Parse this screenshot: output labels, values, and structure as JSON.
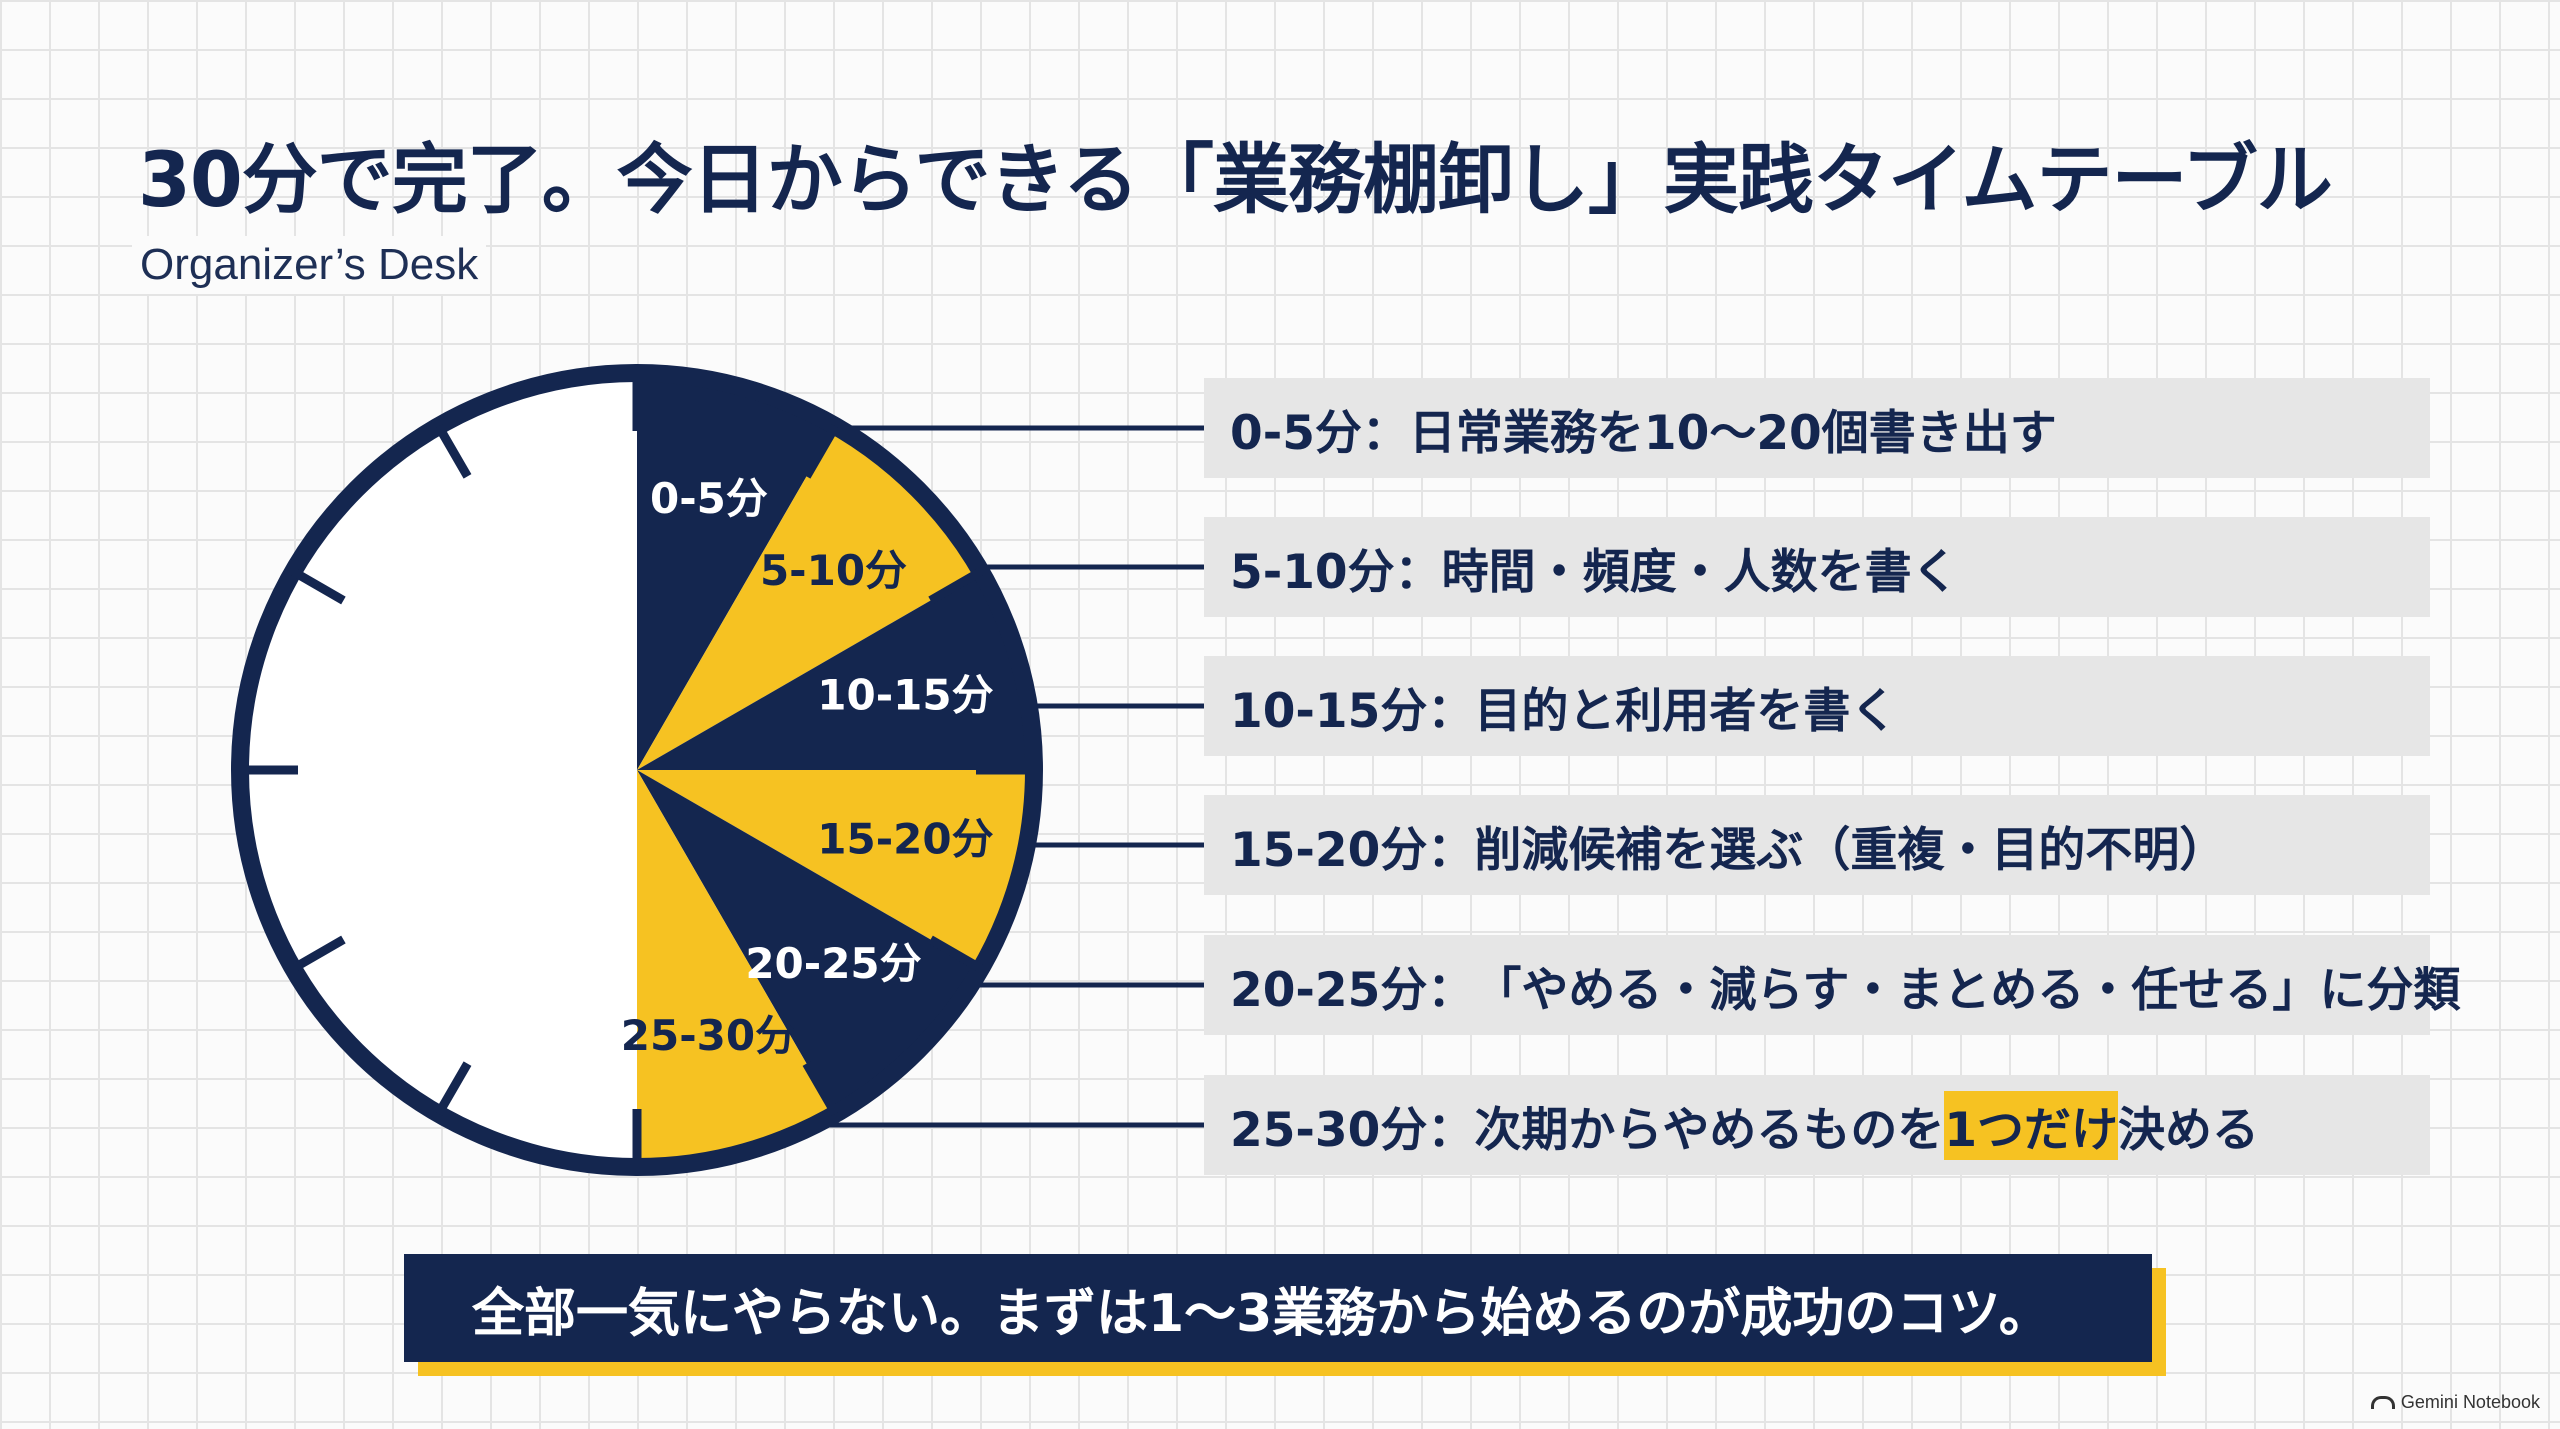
{
  "title": "30分で完了。今日からできる「業務棚卸し」実践タイムテーブル",
  "subtitle": "Organizer’s Desk",
  "clock": {
    "total_minutes": 60,
    "colors": {
      "navy": "#14264f",
      "yellow": "#f6c222",
      "face": "#ffffff"
    },
    "segments": [
      {
        "label": "0-5分",
        "start": 0,
        "end": 5,
        "color": "navy",
        "text_color": "#ffffff"
      },
      {
        "label": "5-10分",
        "start": 5,
        "end": 10,
        "color": "yellow",
        "text_color": "#14264f"
      },
      {
        "label": "10-15分",
        "start": 10,
        "end": 15,
        "color": "navy",
        "text_color": "#ffffff"
      },
      {
        "label": "15-20分",
        "start": 15,
        "end": 20,
        "color": "yellow",
        "text_color": "#14264f"
      },
      {
        "label": "20-25分",
        "start": 20,
        "end": 25,
        "color": "navy",
        "text_color": "#ffffff"
      },
      {
        "label": "25-30分",
        "start": 25,
        "end": 30,
        "color": "yellow",
        "text_color": "#14264f"
      }
    ]
  },
  "steps": [
    {
      "time": "0-5分",
      "sep": "：",
      "text": "日常業務を10〜20個書き出す"
    },
    {
      "time": "5-10分",
      "sep": "：",
      "text": "時間・頻度・人数を書く"
    },
    {
      "time": "10-15分",
      "sep": "：",
      "text": "目的と利用者を書く"
    },
    {
      "time": "15-20分",
      "sep": "：",
      "text": "削減候補を選ぶ（重複・目的不明）"
    },
    {
      "time": "20-25分",
      "sep": "：",
      "text": "「やめる・減らす・まとめる・任せる」に分類"
    },
    {
      "time": "25-30分",
      "sep": "：",
      "text_before": "次期からやめるものを",
      "highlight": "1つだけ",
      "text_after": "決める"
    }
  ],
  "footer": "全部一気にやらない。まずは1〜3業務から始めるのが成功のコツ。",
  "watermark": "Gemini Notebook"
}
